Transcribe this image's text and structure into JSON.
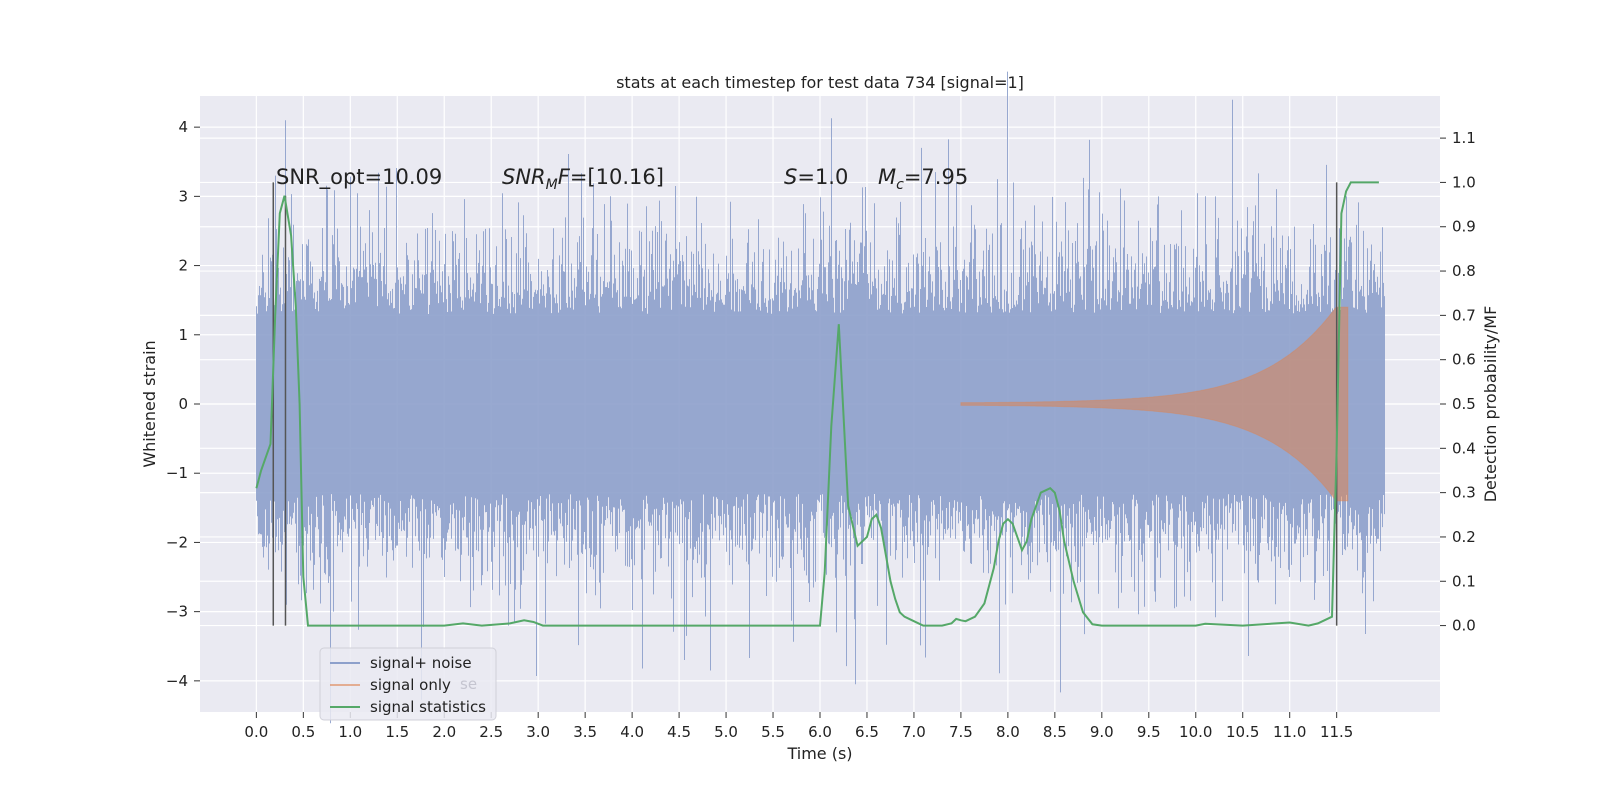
{
  "chart_data": {
    "type": "line",
    "title": "stats at each timestep for test data 734 [signal=1]",
    "xlabel": "Time (s)",
    "ylabel": "Whitened strain",
    "y2label": "Detection probability/MF",
    "xlim": [
      -0.6,
      12.6
    ],
    "ylim": [
      -4.45,
      4.45
    ],
    "y2lim": [
      -0.195,
      1.195
    ],
    "x_ticks": [
      "0.0",
      "0.5",
      "1.0",
      "1.5",
      "2.0",
      "2.5",
      "3.0",
      "3.5",
      "4.0",
      "4.5",
      "5.0",
      "5.5",
      "6.0",
      "6.5",
      "7.0",
      "7.5",
      "8.0",
      "8.5",
      "9.0",
      "9.5",
      "10.0",
      "10.5",
      "11.0",
      "11.5"
    ],
    "y_ticks": [
      "4",
      "3",
      "2",
      "1",
      "0",
      "−1",
      "−2",
      "−3",
      "−4"
    ],
    "y2_ticks": [
      "1.1",
      "1.0",
      "0.9",
      "0.8",
      "0.7",
      "0.6",
      "0.5",
      "0.4",
      "0.3",
      "0.2",
      "0.1",
      "0.0"
    ],
    "annotations": {
      "snr_opt": "SNR_opt=10.09",
      "snr_mf_sym": "SNR",
      "snr_mf_sub": "M",
      "snr_mf_rest": "F",
      "snr_mf_val": "=[10.16]",
      "s_sym": "S",
      "s_val": "=1.0",
      "mc_sym": "M",
      "mc_sub": "c",
      "mc_val": "=7.95"
    },
    "noise": {
      "x_range": [
        0.0,
        12.0
      ],
      "typical_envelope": 1.3,
      "peaks": [
        {
          "x": 0.2,
          "y": 3.3
        },
        {
          "x": 0.3,
          "y": 4.1
        },
        {
          "x": 0.32,
          "y": -2.9
        },
        {
          "x": 0.75,
          "y": 3.1
        },
        {
          "x": 0.82,
          "y": -3.0
        },
        {
          "x": 4.57,
          "y": -3.35
        },
        {
          "x": 4.83,
          "y": -3.85
        },
        {
          "x": 6.17,
          "y": -3.3
        },
        {
          "x": 6.37,
          "y": -4.05
        },
        {
          "x": 6.57,
          "y": 2.9
        },
        {
          "x": 7.07,
          "y": 3.7
        },
        {
          "x": 7.22,
          "y": 3.35
        },
        {
          "x": 7.45,
          "y": 3.2
        },
        {
          "x": 8.05,
          "y": 3.2
        },
        {
          "x": 8.85,
          "y": 3.1
        },
        {
          "x": 9.6,
          "y": 3.0
        },
        {
          "x": 10.2,
          "y": 3.0
        },
        {
          "x": 11.6,
          "y": 3.0
        }
      ]
    },
    "signal": {
      "x_start": 7.5,
      "x_end": 11.62,
      "envelope_start": 0.02,
      "envelope_end": 1.4
    },
    "detection_stat": {
      "x": [
        0.0,
        0.05,
        0.15,
        0.2,
        0.25,
        0.3,
        0.37,
        0.42,
        0.46,
        0.5,
        0.55,
        1.0,
        2.0,
        2.2,
        2.4,
        2.7,
        2.85,
        2.95,
        3.05,
        4.0,
        5.0,
        6.0,
        6.05,
        6.12,
        6.2,
        6.3,
        6.4,
        6.5,
        6.55,
        6.6,
        6.65,
        6.75,
        6.8,
        6.85,
        6.9,
        7.0,
        7.1,
        7.2,
        7.3,
        7.4,
        7.45,
        7.5,
        7.55,
        7.65,
        7.75,
        7.8,
        7.85,
        7.9,
        7.95,
        8.0,
        8.05,
        8.1,
        8.15,
        8.2,
        8.25,
        8.35,
        8.45,
        8.5,
        8.55,
        8.6,
        8.7,
        8.8,
        8.9,
        9.0,
        10.0,
        10.1,
        10.5,
        11.0,
        11.2,
        11.3,
        11.45,
        11.5,
        11.55,
        11.6,
        11.65,
        11.8,
        11.95
      ],
      "y": [
        0.31,
        0.35,
        0.41,
        0.7,
        0.93,
        0.97,
        0.88,
        0.72,
        0.5,
        0.11,
        0.0,
        0.0,
        0.0,
        0.005,
        0.0,
        0.005,
        0.012,
        0.008,
        0.0,
        0.0,
        0.0,
        0.0,
        0.12,
        0.45,
        0.68,
        0.27,
        0.18,
        0.2,
        0.24,
        0.25,
        0.22,
        0.1,
        0.06,
        0.03,
        0.02,
        0.01,
        0.0,
        0.0,
        0.0,
        0.005,
        0.015,
        0.012,
        0.01,
        0.02,
        0.05,
        0.09,
        0.13,
        0.19,
        0.23,
        0.24,
        0.23,
        0.2,
        0.17,
        0.19,
        0.24,
        0.3,
        0.31,
        0.3,
        0.26,
        0.19,
        0.1,
        0.03,
        0.003,
        0.0,
        0.0,
        0.004,
        0.0,
        0.007,
        0.0,
        0.005,
        0.02,
        0.4,
        0.93,
        0.98,
        1.0,
        1.0,
        1.0
      ]
    },
    "vertical_markers": [
      {
        "x": 0.18,
        "y_from": -0.0,
        "y_to": 1.0
      },
      {
        "x": 0.31,
        "y_from": -0.0,
        "y_to": 0.97
      },
      {
        "x": 11.5,
        "y_from": -0.0,
        "y_to": 1.0
      }
    ],
    "series": [
      {
        "name": "signal+ noise",
        "color": "#8da0cb"
      },
      {
        "name": "signal only",
        "color": "#dd8452"
      },
      {
        "name": "signal statistics",
        "color": "#55a868"
      }
    ],
    "ghost_legend_text": "se",
    "grid": true,
    "legend_position": "lower-left",
    "background_color": "#eaeaf2",
    "grid_color": "#ffffff",
    "noise_color": "#8da0cb",
    "signal_color": "#dd8452",
    "stat_color": "#55a868",
    "marker_color": "#555555"
  }
}
